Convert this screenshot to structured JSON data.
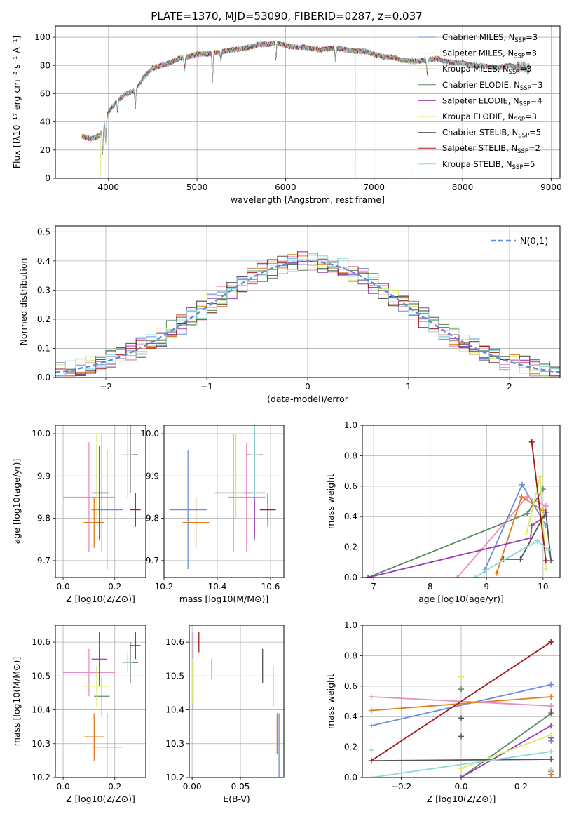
{
  "figure_title": "PLATE=1370, MJD=53090, FIBERID=0287, z=0.037",
  "colors": [
    "#6a8fd8",
    "#e98fc0",
    "#e07b1f",
    "#5b8a60",
    "#9b3bb5",
    "#d6ec6a",
    "#555555",
    "#a31b1b",
    "#8fd9dd"
  ],
  "chart_data": [
    {
      "id": "spectrum",
      "type": "line",
      "title": "PLATE=1370, MJD=53090, FIBERID=0287, z=0.037",
      "xlabel": "wavelength [Angstrom, rest frame]",
      "ylabel": "Flux [fλ10⁻¹⁷ erg cm⁻² s⁻¹ A⁻¹]",
      "xlim": [
        3400,
        9100
      ],
      "ylim": [
        0,
        108
      ],
      "xticks": [
        4000,
        5000,
        6000,
        7000,
        8000,
        9000
      ],
      "yticks": [
        0,
        20,
        40,
        60,
        80,
        100
      ],
      "legend_position": "top-right",
      "series": [
        {
          "name": "Chabrier MILES, N",
          "sub": "SSP",
          "tail": "=3"
        },
        {
          "name": "Salpeter MILES, N",
          "sub": "SSP",
          "tail": "=3"
        },
        {
          "name": "Kroupa MILES, N",
          "sub": "SSP",
          "tail": "=3"
        },
        {
          "name": "Chabrier ELODIE, N",
          "sub": "SSP",
          "tail": "=3"
        },
        {
          "name": "Salpeter ELODIE, N",
          "sub": "SSP",
          "tail": "=4"
        },
        {
          "name": "Kroupa ELODIE, N",
          "sub": "SSP",
          "tail": "=3"
        },
        {
          "name": "Chabrier STELIB, N",
          "sub": "SSP",
          "tail": "=5"
        },
        {
          "name": "Salpeter STELIB, N",
          "sub": "SSP",
          "tail": "=2"
        },
        {
          "name": "Kroupa STELIB, N",
          "sub": "SSP",
          "tail": "=5"
        }
      ],
      "continuum": [
        [
          3700,
          30
        ],
        [
          3800,
          28
        ],
        [
          3900,
          30
        ],
        [
          3950,
          38
        ],
        [
          4000,
          47
        ],
        [
          4100,
          55
        ],
        [
          4200,
          60
        ],
        [
          4300,
          62
        ],
        [
          4400,
          72
        ],
        [
          4500,
          78
        ],
        [
          4600,
          80
        ],
        [
          4700,
          82
        ],
        [
          4800,
          85
        ],
        [
          4900,
          86
        ],
        [
          5000,
          88
        ],
        [
          5100,
          88
        ],
        [
          5200,
          89
        ],
        [
          5300,
          90
        ],
        [
          5400,
          91
        ],
        [
          5500,
          92
        ],
        [
          5600,
          93
        ],
        [
          5700,
          95
        ],
        [
          5800,
          95
        ],
        [
          5900,
          96
        ],
        [
          6000,
          94
        ],
        [
          6100,
          93
        ],
        [
          6200,
          93
        ],
        [
          6300,
          92
        ],
        [
          6400,
          91
        ],
        [
          6500,
          92
        ],
        [
          6600,
          92
        ],
        [
          6700,
          91
        ],
        [
          6800,
          90
        ],
        [
          6900,
          90
        ],
        [
          7000,
          88
        ],
        [
          7100,
          86
        ],
        [
          7200,
          86
        ],
        [
          7300,
          84
        ],
        [
          7400,
          83
        ],
        [
          7500,
          83
        ],
        [
          7600,
          84
        ],
        [
          7700,
          85
        ],
        [
          7800,
          83
        ],
        [
          7900,
          82
        ],
        [
          8000,
          82
        ],
        [
          8100,
          80
        ],
        [
          8200,
          80
        ],
        [
          8300,
          79
        ],
        [
          8400,
          78
        ],
        [
          8500,
          80
        ],
        [
          8600,
          79
        ],
        [
          8700,
          79
        ],
        [
          8750,
          78
        ]
      ],
      "absorptions": [
        [
          3934,
          -18
        ],
        [
          3969,
          -16
        ],
        [
          4102,
          -8
        ],
        [
          4304,
          -12
        ],
        [
          4861,
          -8
        ],
        [
          5175,
          -20
        ],
        [
          5270,
          -6
        ],
        [
          5890,
          -12
        ],
        [
          6563,
          -8
        ],
        [
          7600,
          -10
        ]
      ],
      "dropouts": [
        {
          "series": 5,
          "x": 3910
        },
        {
          "series": 5,
          "x": 6790
        },
        {
          "series": 2,
          "x": 7420
        }
      ]
    },
    {
      "id": "residuals",
      "type": "line",
      "xlabel": "(data-model)/error",
      "ylabel": "Normed distribution",
      "xlim": [
        -2.5,
        2.5
      ],
      "ylim": [
        0,
        0.52
      ],
      "xticks": [
        -2,
        -1,
        0,
        1,
        2
      ],
      "yticks": [
        0.0,
        0.1,
        0.2,
        0.3,
        0.4,
        0.5
      ],
      "legend_position": "top-right",
      "reference": {
        "name": "N(0,1)",
        "mu": 0,
        "sigma": 1
      },
      "bin_width": 0.1
    },
    {
      "id": "age-vs-Z",
      "type": "scatter",
      "xlabel": "Z [log10(Z/Z⊙)]",
      "ylabel": "age  [log10(age/yr)]",
      "xlim": [
        -0.03,
        0.32
      ],
      "ylim": [
        9.66,
        10.02
      ],
      "xticks": [
        0.0,
        0.2
      ],
      "yticks": [
        9.7,
        9.8,
        9.9,
        10.0
      ],
      "points": [
        {
          "x": 0.17,
          "xerr": 0.06,
          "y": 9.82,
          "yerr": 0.14
        },
        {
          "x": 0.1,
          "xerr": 0.1,
          "y": 9.85,
          "yerr": 0.13
        },
        {
          "x": 0.12,
          "xerr": 0.04,
          "y": 9.79,
          "yerr": 0.06
        },
        {
          "x": 0.15,
          "xerr": 0.03,
          "y": 9.86,
          "yerr": 0.14
        },
        {
          "x": 0.14,
          "xerr": 0.03,
          "y": 9.86,
          "yerr": 0.11
        },
        {
          "x": 0.13,
          "xerr": 0.03,
          "y": 9.9,
          "yerr": 0.1
        },
        {
          "x": 0.26,
          "xerr": 0.03,
          "y": 9.95,
          "yerr": 0.09
        },
        {
          "x": 0.28,
          "xerr": 0.02,
          "y": 9.82,
          "yerr": 0.04
        },
        {
          "x": 0.25,
          "xerr": 0.02,
          "y": 9.95,
          "yerr": 0.1
        }
      ]
    },
    {
      "id": "age-vs-mass",
      "type": "scatter",
      "xlabel": "mass [log10(M/M⊙)]",
      "xlim": [
        10.2,
        10.65
      ],
      "ylim": [
        9.66,
        10.02
      ],
      "xticks": [
        10.2,
        10.4,
        10.6
      ],
      "yticks": [
        9.7,
        9.8,
        9.9,
        10.0
      ],
      "points": [
        {
          "x": 10.29,
          "xerr": 0.07,
          "y": 9.82,
          "yerr": 0.14
        },
        {
          "x": 10.51,
          "xerr": 0.07,
          "y": 9.85,
          "yerr": 0.13
        },
        {
          "x": 10.32,
          "xerr": 0.05,
          "y": 9.79,
          "yerr": 0.06
        },
        {
          "x": 10.46,
          "xerr": 0.07,
          "y": 9.86,
          "yerr": 0.14
        },
        {
          "x": 10.54,
          "xerr": 0.04,
          "y": 9.86,
          "yerr": 0.11
        },
        {
          "x": 10.47,
          "xerr": 0.03,
          "y": 9.9,
          "yerr": 0.1
        },
        {
          "x": 10.54,
          "xerr": 0.03,
          "y": 9.95,
          "yerr": 0.09
        },
        {
          "x": 10.59,
          "xerr": 0.03,
          "y": 9.82,
          "yerr": 0.04
        },
        {
          "x": 10.54,
          "xerr": 0.02,
          "y": 9.95,
          "yerr": 0.1
        }
      ]
    },
    {
      "id": "weight-vs-age",
      "type": "line",
      "xlabel": "age  [log10(age/yr)]",
      "ylabel": "mass weight",
      "xlim": [
        6.8,
        10.3
      ],
      "ylim": [
        0,
        1.0
      ],
      "xticks": [
        7,
        8,
        9,
        10
      ],
      "yticks": [
        0.0,
        0.2,
        0.4,
        0.6,
        0.8,
        1.0
      ],
      "series": [
        {
          "points": [
            [
              8.97,
              0.05
            ],
            [
              9.63,
              0.61
            ],
            [
              10.05,
              0.34
            ]
          ]
        },
        {
          "points": [
            [
              8.48,
              0.0
            ],
            [
              9.72,
              0.53
            ],
            [
              10.05,
              0.47
            ]
          ]
        },
        {
          "points": [
            [
              9.18,
              0.03
            ],
            [
              9.62,
              0.53
            ],
            [
              10.0,
              0.44
            ]
          ]
        },
        {
          "points": [
            [
              6.9,
              0.0
            ],
            [
              9.72,
              0.42
            ],
            [
              10.0,
              0.58
            ]
          ]
        },
        {
          "points": [
            [
              6.9,
              0.0
            ],
            [
              9.78,
              0.26
            ],
            [
              9.8,
              0.34
            ],
            [
              10.03,
              0.4
            ]
          ]
        },
        {
          "points": [
            [
              9.7,
              0.28
            ],
            [
              9.95,
              0.66
            ],
            [
              10.05,
              0.06
            ]
          ]
        },
        {
          "points": [
            [
              9.3,
              0.12
            ],
            [
              9.6,
              0.12
            ],
            [
              10.05,
              0.43
            ],
            [
              10.14,
              0.11
            ]
          ]
        },
        {
          "points": [
            [
              9.8,
              0.89
            ],
            [
              10.05,
              0.11
            ]
          ]
        },
        {
          "points": [
            [
              8.8,
              0.0
            ],
            [
              9.0,
              0.05
            ],
            [
              9.9,
              0.24
            ],
            [
              10.1,
              0.18
            ]
          ]
        }
      ]
    },
    {
      "id": "mass-vs-Z",
      "type": "scatter",
      "xlabel": "Z [log10(Z/Z⊙)]",
      "ylabel": "mass [log10(M/M⊙)]",
      "xlim": [
        -0.03,
        0.32
      ],
      "ylim": [
        10.2,
        10.65
      ],
      "xticks": [
        0.0,
        0.2
      ],
      "yticks": [
        10.2,
        10.3,
        10.4,
        10.5,
        10.6
      ],
      "points": [
        {
          "x": 0.17,
          "xerr": 0.06,
          "y": 10.29,
          "yerr": 0.1
        },
        {
          "x": 0.1,
          "xerr": 0.1,
          "y": 10.51,
          "yerr": 0.07
        },
        {
          "x": 0.12,
          "xerr": 0.04,
          "y": 10.32,
          "yerr": 0.07
        },
        {
          "x": 0.15,
          "xerr": 0.03,
          "y": 10.44,
          "yerr": 0.06
        },
        {
          "x": 0.14,
          "xerr": 0.03,
          "y": 10.55,
          "yerr": 0.08
        },
        {
          "x": 0.13,
          "xerr": 0.05,
          "y": 10.47,
          "yerr": 0.06
        },
        {
          "x": 0.26,
          "xerr": 0.03,
          "y": 10.54,
          "yerr": 0.06
        },
        {
          "x": 0.28,
          "xerr": 0.02,
          "y": 10.59,
          "yerr": 0.04
        },
        {
          "x": 0.25,
          "xerr": 0.02,
          "y": 10.54,
          "yerr": 0.03
        }
      ]
    },
    {
      "id": "mass-vs-ebv",
      "type": "scatter",
      "xlabel": "E(B-V)",
      "xlim": [
        -0.003,
        0.095
      ],
      "ylim": [
        10.2,
        10.65
      ],
      "xticks": [
        0.0,
        0.05
      ],
      "yticks": [
        10.2,
        10.3,
        10.4,
        10.5,
        10.6
      ],
      "points": [
        {
          "x": 0.09,
          "y": 10.29,
          "yerr": 0.1
        },
        {
          "x": 0.084,
          "y": 10.47,
          "yerr": 0.06
        },
        {
          "x": 0.088,
          "y": 10.33,
          "yerr": 0.06
        },
        {
          "x": 0.001,
          "y": 10.47,
          "yerr": 0.07
        },
        {
          "x": 0.001,
          "y": 10.59,
          "yerr": 0.04
        },
        {
          "x": 0.0,
          "y": 10.48,
          "yerr": 0.06
        },
        {
          "x": 0.073,
          "y": 10.53,
          "yerr": 0.05
        },
        {
          "x": 0.007,
          "y": 10.6,
          "yerr": 0.03
        },
        {
          "x": 0.02,
          "y": 10.52,
          "yerr": 0.03
        }
      ]
    },
    {
      "id": "weight-vs-Z",
      "type": "line",
      "xlabel": "Z [log10(Z/Z⊙)]",
      "ylabel": "mass weight",
      "xlim": [
        -0.33,
        0.33
      ],
      "ylim": [
        0,
        1.0
      ],
      "xticks": [
        -0.2,
        0.0,
        0.2
      ],
      "yticks": [
        0.0,
        0.2,
        0.4,
        0.6,
        0.8,
        1.0
      ],
      "series": [
        {
          "points": [
            [
              -0.3,
              0.34
            ],
            [
              0.3,
              0.61
            ]
          ],
          "markers": [
            [
              0.3,
              0.24
            ],
            [
              0.3,
              0.04
            ]
          ]
        },
        {
          "points": [
            [
              -0.3,
              0.53
            ],
            [
              0.3,
              0.47
            ]
          ]
        },
        {
          "points": [
            [
              -0.3,
              0.44
            ],
            [
              0.3,
              0.53
            ]
          ],
          "markers": [
            [
              0.3,
              0.04
            ],
            [
              0.3,
              0.02
            ]
          ]
        },
        {
          "points": [
            [
              0.0,
              0.0
            ],
            [
              0.3,
              0.42
            ]
          ],
          "markers": [
            [
              0.0,
              0.58
            ]
          ]
        },
        {
          "points": [
            [
              0.0,
              0.0
            ],
            [
              0.3,
              0.34
            ]
          ],
          "markers": [
            [
              0.3,
              0.26
            ]
          ]
        },
        {
          "points": [
            [
              0.0,
              0.06
            ],
            [
              0.3,
              0.28
            ]
          ],
          "markers": [
            [
              0.0,
              0.66
            ]
          ]
        },
        {
          "points": [
            [
              -0.3,
              0.11
            ],
            [
              0.3,
              0.12
            ]
          ],
          "markers": [
            [
              0.0,
              0.39
            ],
            [
              0.0,
              0.27
            ],
            [
              0.3,
              0.43
            ]
          ]
        },
        {
          "points": [
            [
              -0.3,
              0.11
            ],
            [
              0.3,
              0.89
            ]
          ]
        },
        {
          "points": [
            [
              -0.3,
              0.0
            ],
            [
              0.3,
              0.17
            ]
          ],
          "markers": [
            [
              -0.3,
              0.18
            ],
            [
              0.3,
              0.05
            ]
          ]
        }
      ]
    }
  ]
}
